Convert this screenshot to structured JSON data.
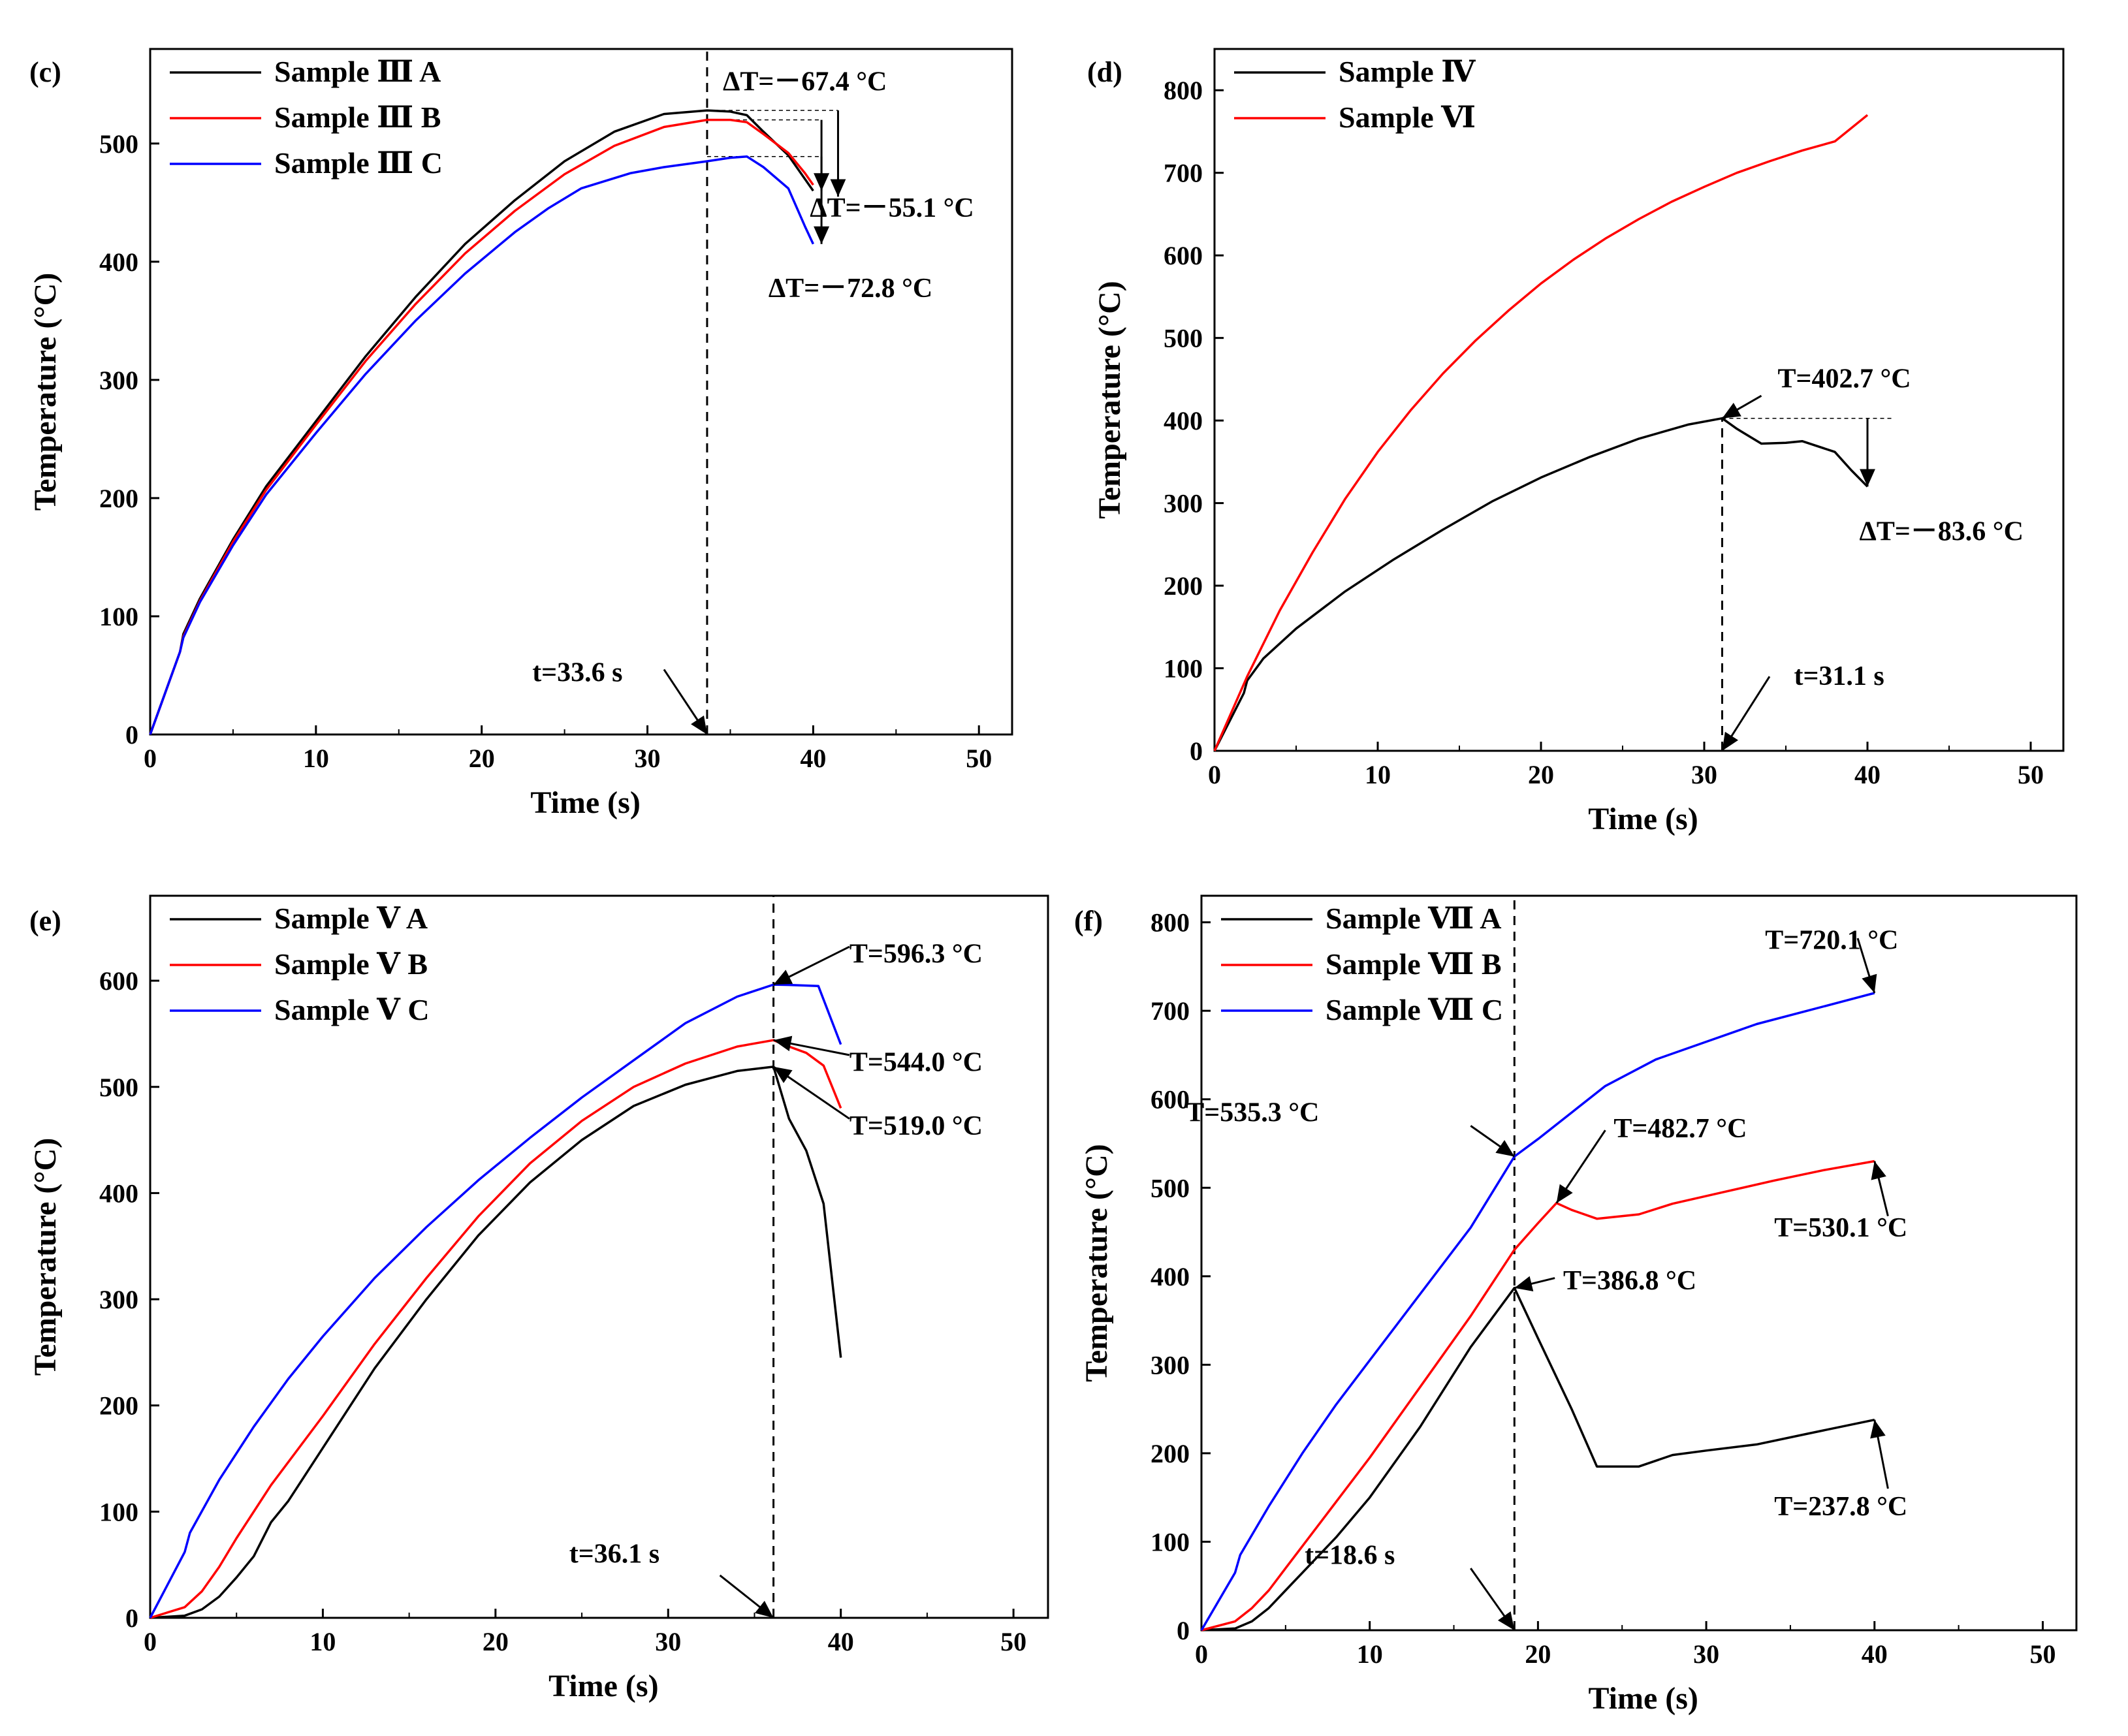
{
  "figure_caption": "",
  "chart_data": [
    {
      "panel": "(c)",
      "type": "line",
      "xlabel": "Time (s)",
      "ylabel": "Temperature (°C)",
      "xlim": [
        0,
        52
      ],
      "ylim": [
        0,
        580
      ],
      "xticks": [
        0,
        10,
        20,
        30,
        40,
        50
      ],
      "yticks": [
        0,
        100,
        200,
        300,
        400,
        500
      ],
      "legend_position": "top-left",
      "series": [
        {
          "name": "Sample Ⅲ A",
          "color": "#000000",
          "x": [
            0,
            1.8,
            2,
            3,
            5,
            7,
            10,
            13,
            16,
            19,
            22,
            25,
            28,
            31,
            33.6,
            35,
            36,
            37,
            38.5,
            39.5,
            40
          ],
          "values": [
            0,
            70,
            85,
            115,
            165,
            210,
            265,
            320,
            370,
            415,
            452,
            485,
            510,
            525,
            528,
            527,
            524,
            510,
            490,
            470,
            460
          ]
        },
        {
          "name": "Sample Ⅲ B",
          "color": "#ff0000",
          "x": [
            0,
            1.8,
            2,
            3,
            5,
            7,
            10,
            13,
            16,
            19,
            22,
            25,
            28,
            31,
            33.6,
            35,
            36,
            37,
            38.5,
            39.5,
            40
          ],
          "values": [
            0,
            70,
            83,
            113,
            163,
            207,
            262,
            316,
            364,
            407,
            443,
            474,
            498,
            514,
            520,
            520,
            518,
            508,
            492,
            475,
            465
          ]
        },
        {
          "name": "Sample Ⅲ C",
          "color": "#0000ff",
          "x": [
            0,
            1.8,
            2,
            3,
            5,
            7,
            10,
            13,
            16,
            19,
            22,
            24,
            26,
            29,
            31,
            33.6,
            35,
            36,
            37,
            38.5,
            39.5,
            40
          ],
          "values": [
            0,
            70,
            82,
            112,
            160,
            203,
            255,
            305,
            350,
            390,
            425,
            445,
            462,
            475,
            480,
            485,
            488,
            489,
            480,
            462,
            430,
            415
          ]
        }
      ],
      "vline": {
        "x": 33.6
      },
      "hlines": [
        {
          "y": 528,
          "x0": 33.6,
          "x1": 41.5
        },
        {
          "y": 520,
          "x0": 33.6,
          "x1": 40.5
        },
        {
          "y": 489,
          "x0": 33.6,
          "x1": 40.5
        }
      ],
      "annotations": [
        {
          "text": "ΔT=－67.4 °C",
          "tx": 39.5,
          "ty": 545
        },
        {
          "text": "ΔT=－55.1 °C",
          "tx": 39.8,
          "ty": 438
        },
        {
          "text": "ΔT=－72.8 °C",
          "tx": 37.3,
          "ty": 370
        },
        {
          "text": "t=33.6 s",
          "tx": 28.5,
          "ty": 45
        }
      ]
    },
    {
      "panel": "(d)",
      "type": "line",
      "xlabel": "Time (s)",
      "ylabel": "Temperature (°C)",
      "xlim": [
        0,
        52
      ],
      "ylim": [
        0,
        850
      ],
      "xticks": [
        0,
        10,
        20,
        30,
        40,
        50
      ],
      "yticks": [
        0,
        100,
        200,
        300,
        400,
        500,
        600,
        700,
        800
      ],
      "legend_position": "top-left",
      "series": [
        {
          "name": "Sample Ⅳ",
          "color": "#000000",
          "x": [
            0,
            1.8,
            2,
            3,
            5,
            8,
            11,
            14,
            17,
            20,
            23,
            26,
            29,
            31.1,
            32,
            33.5,
            35,
            36,
            38,
            39,
            40
          ],
          "values": [
            0,
            70,
            85,
            112,
            148,
            193,
            232,
            268,
            302,
            331,
            356,
            378,
            395,
            402.7,
            390,
            372,
            373,
            375,
            362,
            340,
            320
          ]
        },
        {
          "name": "Sample Ⅵ",
          "color": "#ff0000",
          "x": [
            0,
            2,
            4,
            6,
            8,
            10,
            12,
            14,
            16,
            18,
            20,
            22,
            24,
            26,
            28,
            30,
            32,
            34,
            36,
            38,
            40
          ],
          "values": [
            0,
            90,
            170,
            240,
            305,
            362,
            412,
            457,
            497,
            533,
            566,
            595,
            621,
            644,
            665,
            683,
            700,
            714,
            727,
            738,
            770
          ]
        }
      ],
      "vline": {
        "x": 31.1,
        "y1": 402.7
      },
      "hlines": [
        {
          "y": 402.7,
          "x0": 31.1,
          "x1": 41.5
        }
      ],
      "annotations": [
        {
          "text": "T=402.7 °C",
          "tx": 34.5,
          "ty": 440
        },
        {
          "text": "ΔT=－83.6 °C",
          "tx": 39.5,
          "ty": 255
        },
        {
          "text": "t=31.1 s",
          "tx": 35.5,
          "ty": 80
        }
      ]
    },
    {
      "panel": "(e)",
      "type": "line",
      "xlabel": "Time (s)",
      "ylabel": "Temperature (°C)",
      "xlim": [
        0,
        52
      ],
      "ylim": [
        0,
        680
      ],
      "xticks": [
        0,
        10,
        20,
        30,
        40,
        50
      ],
      "yticks": [
        0,
        100,
        200,
        300,
        400,
        500,
        600
      ],
      "legend_position": "top-left",
      "series": [
        {
          "name": "Sample Ⅴ A",
          "color": "#000000",
          "x": [
            0,
            2,
            3,
            4,
            5,
            6,
            7,
            8,
            10,
            13,
            16,
            19,
            22,
            25,
            28,
            31,
            34,
            36.1,
            37,
            38,
            39,
            40
          ],
          "values": [
            0,
            2,
            8,
            20,
            38,
            58,
            90,
            110,
            160,
            235,
            300,
            360,
            410,
            450,
            482,
            502,
            515,
            519,
            470,
            440,
            390,
            245
          ]
        },
        {
          "name": "Sample Ⅴ B",
          "color": "#ff0000",
          "x": [
            0,
            2,
            3,
            4,
            5,
            7,
            10,
            13,
            16,
            19,
            22,
            25,
            28,
            31,
            34,
            36.1,
            37,
            38,
            39,
            40
          ],
          "values": [
            0,
            10,
            25,
            48,
            75,
            125,
            190,
            258,
            320,
            378,
            428,
            468,
            500,
            522,
            538,
            544,
            538,
            532,
            520,
            480
          ]
        },
        {
          "name": "Sample Ⅴ C",
          "color": "#0000ff",
          "x": [
            0,
            2,
            2.3,
            4,
            6,
            8,
            10,
            13,
            16,
            19,
            22,
            25,
            28,
            31,
            34,
            36.1,
            37,
            38.7,
            40
          ],
          "values": [
            0,
            62,
            80,
            130,
            180,
            225,
            265,
            320,
            368,
            412,
            452,
            490,
            525,
            560,
            585,
            596.3,
            596,
            595,
            540
          ]
        }
      ],
      "vline": {
        "x": 36.1
      },
      "hlines": [],
      "annotations": [
        {
          "text": "T=596.3 °C",
          "tx": 40.5,
          "ty": 617
        },
        {
          "text": "T=544.0 °C",
          "tx": 40.5,
          "ty": 515
        },
        {
          "text": "T=519.0 °C",
          "tx": 40.5,
          "ty": 455
        },
        {
          "text": "t=36.1 s",
          "tx": 29.5,
          "ty": 52
        }
      ]
    },
    {
      "panel": "(f)",
      "type": "line",
      "xlabel": "Time (s)",
      "ylabel": "Temperature (°C)",
      "xlim": [
        0,
        52
      ],
      "ylim": [
        0,
        830
      ],
      "xticks": [
        0,
        10,
        20,
        30,
        40,
        50
      ],
      "yticks": [
        0,
        100,
        200,
        300,
        400,
        500,
        600,
        700,
        800
      ],
      "legend_position": "top-left",
      "series": [
        {
          "name": "Sample Ⅶ A",
          "color": "#000000",
          "x": [
            0,
            2,
            3,
            4,
            5,
            6,
            7,
            8,
            10,
            13,
            16,
            18.6,
            20,
            22,
            23.5,
            26,
            28,
            30,
            33,
            36,
            40
          ],
          "values": [
            0,
            2,
            10,
            25,
            45,
            65,
            85,
            105,
            150,
            230,
            320,
            386.8,
            330,
            250,
            185,
            185,
            198,
            203,
            210,
            222,
            237.8
          ]
        },
        {
          "name": "Sample Ⅶ B",
          "color": "#ff0000",
          "x": [
            0,
            2,
            3,
            4,
            5,
            7,
            10,
            13,
            16,
            18.6,
            20,
            21.1,
            22,
            23.5,
            26,
            28,
            31,
            34,
            37,
            40
          ],
          "values": [
            0,
            10,
            25,
            45,
            70,
            120,
            195,
            275,
            355,
            430,
            460,
            482.7,
            475,
            465,
            470,
            482,
            495,
            508,
            520,
            530.1
          ]
        },
        {
          "name": "Sample Ⅶ C",
          "color": "#0000ff",
          "x": [
            0,
            2,
            2.3,
            4,
            6,
            8,
            10,
            13,
            16,
            18.6,
            20,
            22,
            24,
            27,
            30,
            33,
            36,
            40
          ],
          "values": [
            0,
            65,
            85,
            140,
            200,
            255,
            305,
            380,
            455,
            535.3,
            555,
            585,
            615,
            645,
            665,
            685,
            700,
            720.1
          ]
        }
      ],
      "vline": {
        "x": 18.6
      },
      "hlines": [],
      "annotations": [
        {
          "text": "T=720.1 °C",
          "tx": 33.5,
          "ty": 770
        },
        {
          "text": "T=535.3 °C",
          "tx": 7.0,
          "ty": 575
        },
        {
          "text": "T=482.7 °C",
          "tx": 24.5,
          "ty": 557
        },
        {
          "text": "T=386.8 °C",
          "tx": 21.5,
          "ty": 385
        },
        {
          "text": "T=530.1 °C",
          "tx": 38.0,
          "ty": 445
        },
        {
          "text": "T=237.8 °C",
          "tx": 38.0,
          "ty": 130
        },
        {
          "text": "t=18.6 s",
          "tx": 11.5,
          "ty": 75
        }
      ]
    }
  ]
}
